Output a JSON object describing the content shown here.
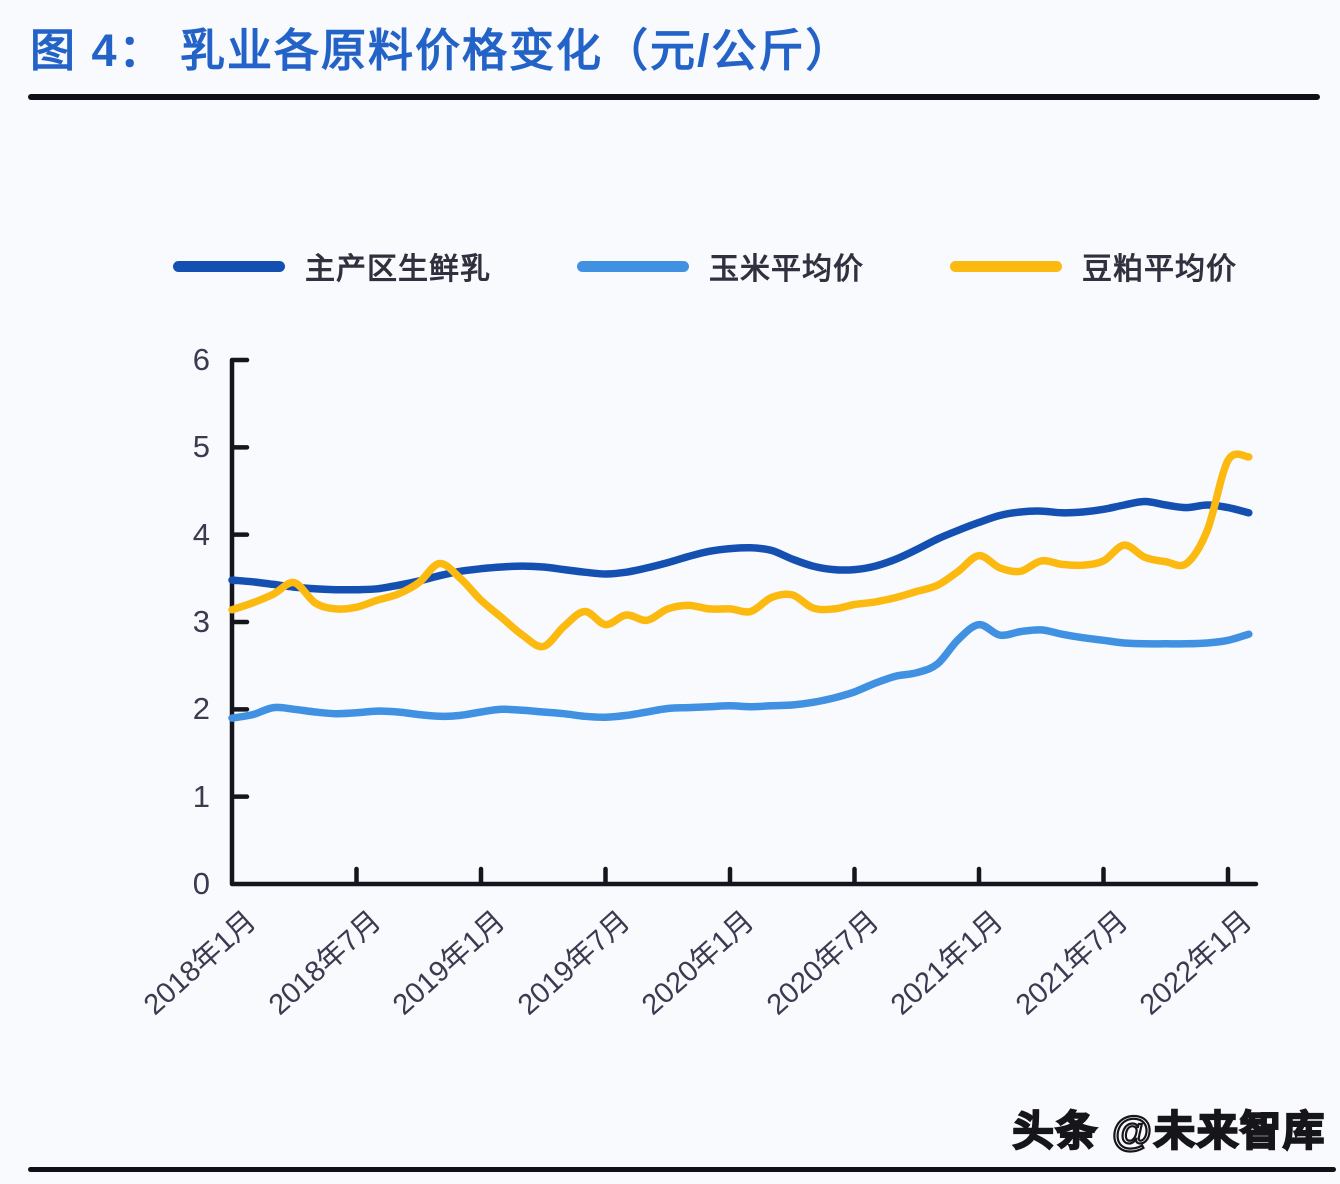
{
  "page": {
    "title": "图 4： 乳业各原料价格变化（元/公斤）",
    "watermark": "头条 @未来智库",
    "title_color": "#2363c7",
    "rule_color": "#101018",
    "background": "#f9fafd"
  },
  "axis": {
    "line_color": "#15151d",
    "tick_label_color": "#3c3950"
  },
  "chart_data": {
    "type": "line",
    "title": "乳业各原料价格变化（元/公斤）",
    "unit": "元/公斤",
    "ylim": [
      0,
      6
    ],
    "y_ticks": [
      0,
      1,
      2,
      3,
      4,
      5,
      6
    ],
    "x_start": "2018年1月",
    "x_end": "2022年2月",
    "x_tick_labels": [
      "2018年1月",
      "2018年7月",
      "2019年1月",
      "2019年7月",
      "2020年1月",
      "2020年7月",
      "2021年1月",
      "2021年7月",
      "2022年1月"
    ],
    "grid": false,
    "legend_position": "top",
    "series": [
      {
        "name": "主产区生鲜乳",
        "color": "#1450b2",
        "values": [
          3.48,
          3.46,
          3.43,
          3.4,
          3.38,
          3.37,
          3.37,
          3.38,
          3.42,
          3.47,
          3.53,
          3.58,
          3.61,
          3.63,
          3.64,
          3.63,
          3.6,
          3.57,
          3.55,
          3.57,
          3.62,
          3.68,
          3.75,
          3.81,
          3.84,
          3.85,
          3.82,
          3.72,
          3.64,
          3.6,
          3.6,
          3.64,
          3.72,
          3.83,
          3.95,
          4.05,
          4.14,
          4.22,
          4.26,
          4.27,
          4.25,
          4.26,
          4.29,
          4.34,
          4.38,
          4.34,
          4.31,
          4.34,
          4.31,
          4.25
        ]
      },
      {
        "name": "玉米平均价",
        "color": "#4191e3",
        "values": [
          1.9,
          1.94,
          2.02,
          2.0,
          1.97,
          1.95,
          1.96,
          1.98,
          1.97,
          1.94,
          1.92,
          1.93,
          1.97,
          2.0,
          1.99,
          1.97,
          1.95,
          1.92,
          1.91,
          1.93,
          1.97,
          2.01,
          2.02,
          2.03,
          2.04,
          2.03,
          2.04,
          2.05,
          2.08,
          2.13,
          2.2,
          2.3,
          2.38,
          2.42,
          2.52,
          2.8,
          2.97,
          2.85,
          2.89,
          2.91,
          2.86,
          2.82,
          2.79,
          2.76,
          2.75,
          2.75,
          2.75,
          2.76,
          2.79,
          2.86
        ]
      },
      {
        "name": "豆粕平均价",
        "color": "#fcba10",
        "values": [
          3.14,
          3.22,
          3.32,
          3.45,
          3.22,
          3.15,
          3.17,
          3.25,
          3.32,
          3.45,
          3.67,
          3.5,
          3.25,
          3.05,
          2.85,
          2.72,
          2.95,
          3.12,
          2.97,
          3.08,
          3.02,
          3.15,
          3.19,
          3.15,
          3.15,
          3.12,
          3.28,
          3.31,
          3.16,
          3.15,
          3.2,
          3.23,
          3.28,
          3.35,
          3.42,
          3.58,
          3.76,
          3.62,
          3.58,
          3.7,
          3.66,
          3.65,
          3.7,
          3.88,
          3.74,
          3.69,
          3.67,
          4.05,
          4.85,
          4.89
        ]
      }
    ]
  }
}
